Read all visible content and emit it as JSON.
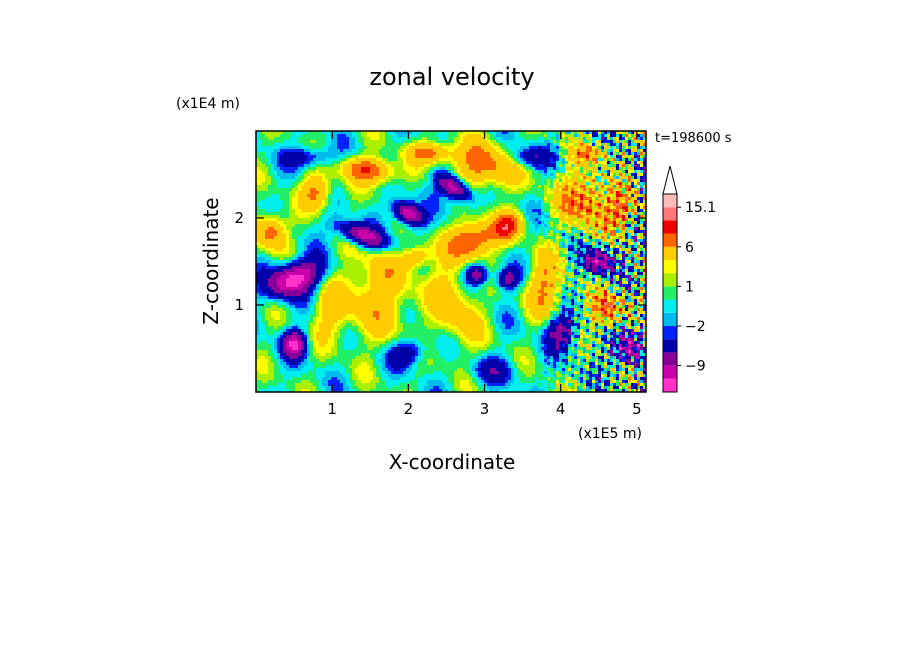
{
  "chart_data": {
    "type": "heatmap",
    "title": "zonal velocity",
    "xlabel": "X-coordinate",
    "ylabel": "Z-coordinate",
    "x_unit": "(x1E5 m)",
    "y_unit": "(x1E4 m)",
    "time_label": "t=198600 s",
    "xlim": [
      0,
      5.12
    ],
    "ylim": [
      0,
      3.0
    ],
    "x_ticks": [
      "1",
      "2",
      "3",
      "4",
      "5"
    ],
    "y_ticks": [
      "1",
      "2"
    ],
    "colorbar": {
      "labels": [
        "15.1",
        "6",
        "1",
        "−2",
        "−9"
      ],
      "label_levels": [
        15.1,
        6,
        1,
        -2,
        -9
      ],
      "levels": [
        -15,
        -12,
        -9,
        -6,
        -3,
        -2,
        -1,
        0,
        1,
        2,
        3,
        6,
        9,
        12,
        15.1
      ],
      "colors": [
        "#ff33cc",
        "#cc00aa",
        "#880099",
        "#0000aa",
        "#0022ff",
        "#00bbee",
        "#00eeee",
        "#22ee66",
        "#aaee00",
        "#ffff00",
        "#ffcc00",
        "#ff6600",
        "#ee0000",
        "#ff7777",
        "#ffbbbb"
      ],
      "extend_top": true
    },
    "grid": false
  }
}
